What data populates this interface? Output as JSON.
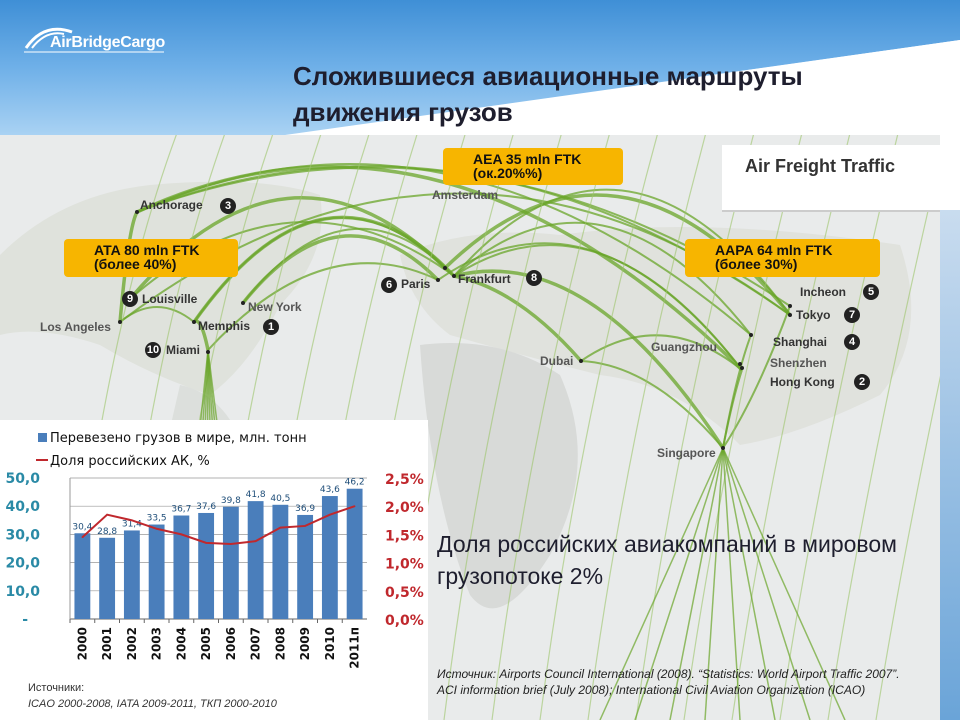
{
  "logo": {
    "brand": "AirBridgeCargo"
  },
  "title": "Сложившиеся авиационные маршруты движения грузов",
  "map": {
    "legend_title": "Air Freight Traffic",
    "callouts": [
      {
        "line1": "ATA 80 mln FTK",
        "line2": "(более 40%)"
      },
      {
        "line1": "AEA 35 mln FTK",
        "line2": "(ок.20%%)"
      },
      {
        "line1": "AAPA 64 mln FTK",
        "line2": "(более 30%)"
      }
    ],
    "cities": [
      {
        "name": "Anchorage",
        "rank": "3"
      },
      {
        "name": "Louisville",
        "rank": "9"
      },
      {
        "name": "Los Angeles",
        "rank": ""
      },
      {
        "name": "New York",
        "rank": ""
      },
      {
        "name": "Memphis",
        "rank": "1"
      },
      {
        "name": "Miami",
        "rank": "10"
      },
      {
        "name": "Amsterdam",
        "rank": ""
      },
      {
        "name": "Paris",
        "rank": "6"
      },
      {
        "name": "Frankfurt",
        "rank": "8"
      },
      {
        "name": "Dubai",
        "rank": ""
      },
      {
        "name": "Incheon",
        "rank": "5"
      },
      {
        "name": "Tokyo",
        "rank": "7"
      },
      {
        "name": "Shanghai",
        "rank": "4"
      },
      {
        "name": "Guangzhou",
        "rank": ""
      },
      {
        "name": "Shenzhen",
        "rank": ""
      },
      {
        "name": "Hong Kong",
        "rank": "2"
      },
      {
        "name": "Singapore",
        "rank": ""
      }
    ],
    "route_color": "#6aa52a",
    "callout_color": "#f7b500"
  },
  "chart_data": {
    "type": "bar",
    "categories": [
      "2000",
      "2001",
      "2002",
      "2003",
      "2004",
      "2005",
      "2006",
      "2007",
      "2008",
      "2009",
      "2010",
      "2011п"
    ],
    "series": [
      {
        "name": "Перевезено грузов в мире, млн. тонн",
        "type": "bar",
        "axis": "left",
        "color": "#4a7ebb",
        "values": [
          30.4,
          28.8,
          31.4,
          33.5,
          36.7,
          37.6,
          39.8,
          41.8,
          40.5,
          36.9,
          43.6,
          46.2
        ],
        "labels": [
          "30,4",
          "28,8",
          "31,4",
          "33,5",
          "36,7",
          "37,6",
          "39,8",
          "41,8",
          "40,5",
          "36,9",
          "43,6",
          "46,2"
        ]
      },
      {
        "name": "Доля российских АК, %",
        "type": "line",
        "axis": "right",
        "color": "#c0282d",
        "values": [
          1.45,
          1.85,
          1.75,
          1.6,
          1.5,
          1.35,
          1.33,
          1.38,
          1.62,
          1.65,
          1.85,
          2.0
        ]
      }
    ],
    "ylim": [
      0,
      50
    ],
    "y2lim": [
      0,
      2.5
    ],
    "yticks": [
      "-",
      "10,0",
      "20,0",
      "30,0",
      "40,0",
      "50,0"
    ],
    "y2ticks": [
      "0,0%",
      "0,5%",
      "1,0%",
      "1,5%",
      "2,0%",
      "2,5%"
    ],
    "grid": true,
    "legend": "top"
  },
  "share_text": "Доля российских авиакомпаний в мировом грузопотоке 2%",
  "sources_left": {
    "heading": "Источники:",
    "text": "ICAO 2000-2008, IATA 2009-2011, ТКП 2000-2010"
  },
  "sources_right": "Источник:  Airports Council International (2008). “Statistics: World Airport Traffic 2007”. ACI information brief (July 2008); International Civil Aviation Organization (ICAO)"
}
